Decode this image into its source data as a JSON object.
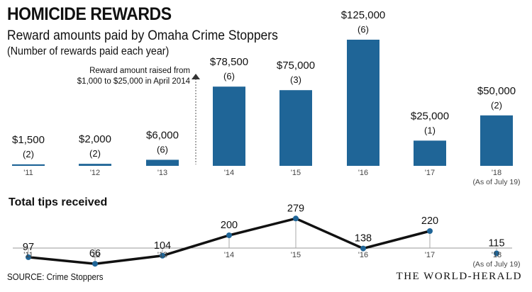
{
  "header": {
    "title": "HOMICIDE REWARDS",
    "subtitle": "Reward amounts paid by Omaha Crime Stoppers",
    "note": "(Number of rewards paid each year)"
  },
  "footer": {
    "source": "SOURCE: Crime Stoppers",
    "brand": "THE WORLD-HERALD"
  },
  "colors": {
    "bar": "#1f6597",
    "line": "#111111",
    "point": "#1f6597"
  },
  "chart_data": [
    {
      "type": "bar",
      "title": "Reward amounts paid by Omaha Crime Stoppers",
      "categories": [
        "'11",
        "'12",
        "'13",
        "'14",
        "'15",
        "'16",
        "'17",
        "'18"
      ],
      "category_note": "(As of July 19)",
      "values": [
        1500,
        2000,
        6000,
        78500,
        75000,
        125000,
        25000,
        50000
      ],
      "value_labels": [
        "$1,500",
        "$2,000",
        "$6,000",
        "$78,500",
        "$75,000",
        "$125,000",
        "$25,000",
        "$50,000"
      ],
      "counts": [
        "(2)",
        "(2)",
        "(6)",
        "(6)",
        "(3)",
        "(6)",
        "(1)",
        "(2)"
      ],
      "annotation": {
        "line1": "Reward amount raised from",
        "line2": "$1,000 to $25,000 in April 2014"
      }
    },
    {
      "type": "line",
      "title": "Total tips received",
      "categories": [
        "'11",
        "'12",
        "'13",
        "'14",
        "'15",
        "'16",
        "'17",
        "'18"
      ],
      "category_note": "(As of July 19)",
      "values": [
        97,
        66,
        104,
        200,
        279,
        138,
        220,
        115
      ],
      "value_labels": [
        "97",
        "66",
        "104",
        "200",
        "279",
        "138",
        "220",
        "115"
      ],
      "connected_through_index": 6
    }
  ]
}
